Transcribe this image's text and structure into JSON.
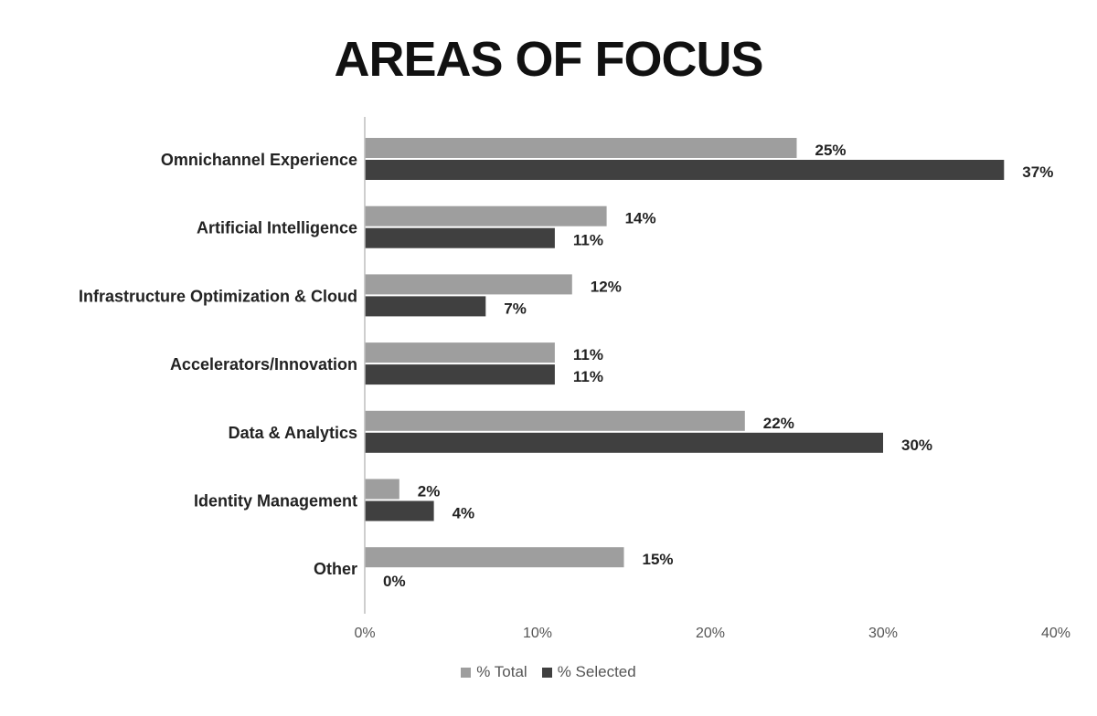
{
  "chart_data": {
    "type": "bar",
    "orientation": "horizontal",
    "title": "AREAS OF FOCUS",
    "categories": [
      "Omnichannel Experience",
      "Artificial Intelligence",
      "Infrastructure Optimization & Cloud",
      "Accelerators/Innovation",
      "Data & Analytics",
      "Identity Management",
      "Other"
    ],
    "series": [
      {
        "name": "% Total",
        "color": "#9e9e9e",
        "values": [
          25,
          14,
          12,
          11,
          22,
          2,
          15
        ],
        "labels": [
          "25%",
          "14%",
          "12%",
          "11%",
          "22%",
          "2%",
          "15%"
        ]
      },
      {
        "name": "% Selected",
        "color": "#404040",
        "values": [
          37,
          11,
          7,
          11,
          30,
          4,
          0
        ],
        "labels": [
          "37%",
          "11%",
          "7%",
          "11%",
          "30%",
          "4%",
          "0%"
        ]
      }
    ],
    "xlim": [
      0,
      40
    ],
    "xticks": [
      0,
      10,
      20,
      30,
      40
    ],
    "xtick_labels": [
      "0%",
      "10%",
      "20%",
      "30%",
      "40%"
    ],
    "xlabel": "",
    "ylabel": "",
    "grid": false,
    "legend_position": "bottom-center"
  }
}
